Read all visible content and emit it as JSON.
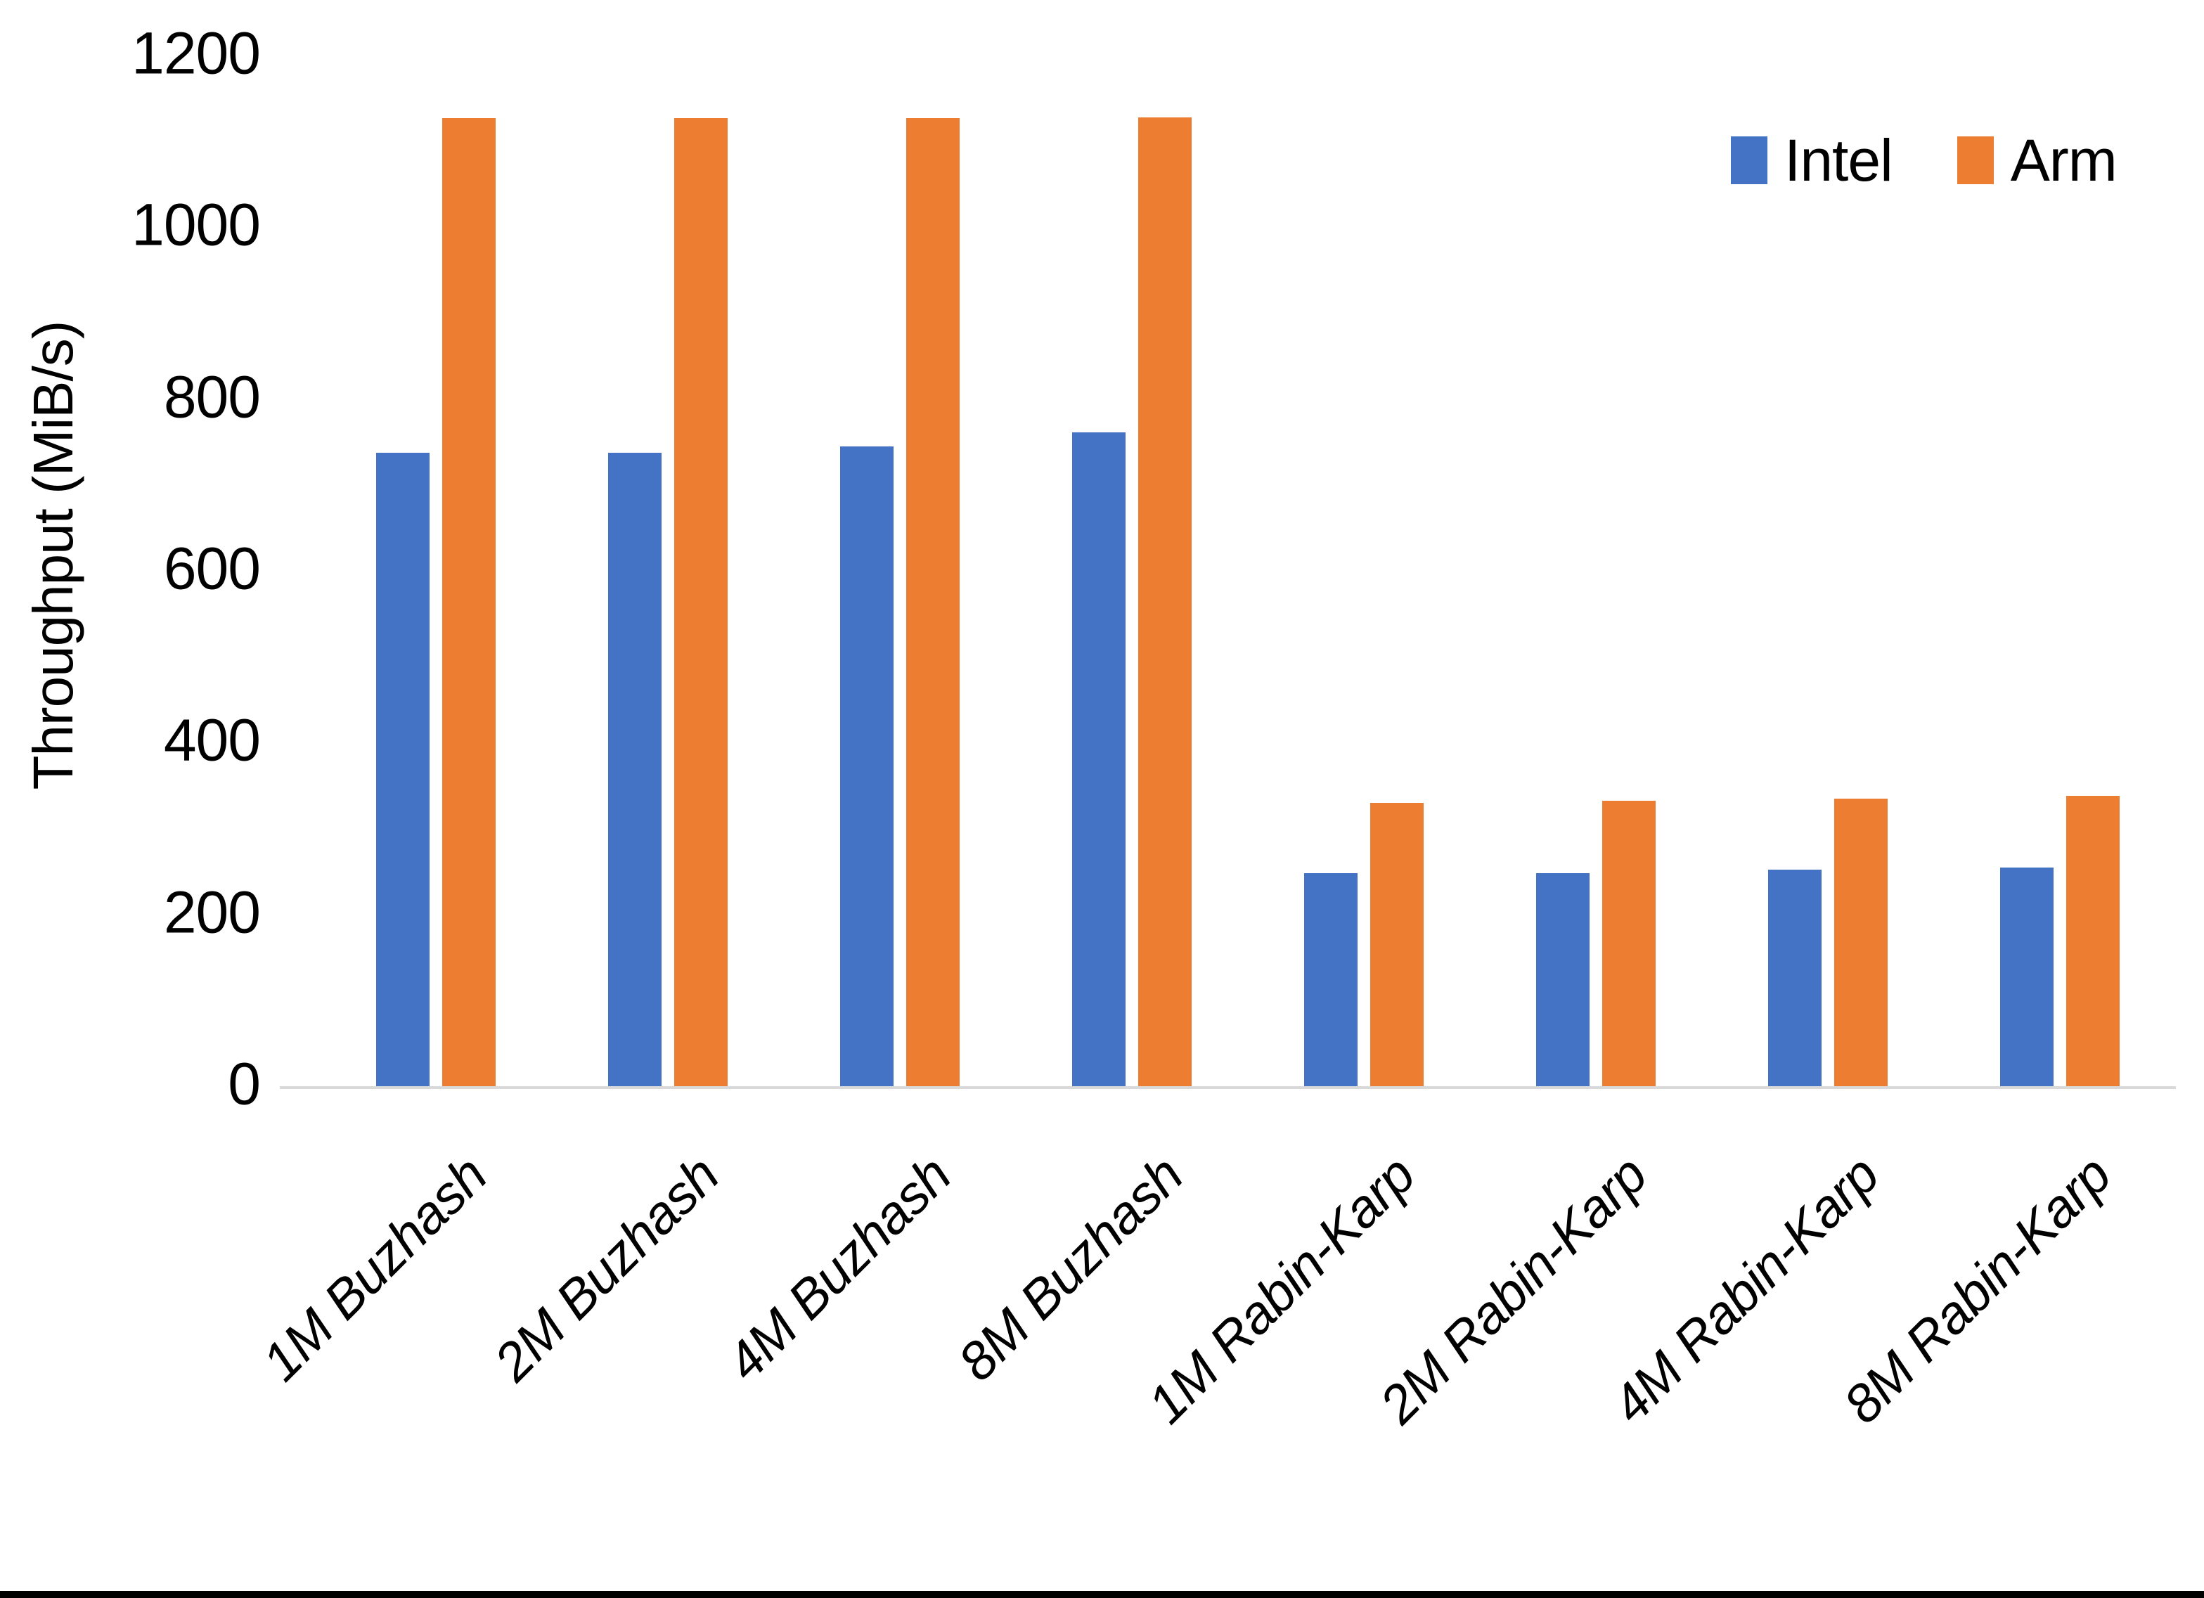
{
  "chart_data": {
    "type": "bar",
    "title": "",
    "xlabel": "",
    "ylabel": "Throughput (MiB/s)",
    "ylim": [
      0,
      1200
    ],
    "yticks": [
      0,
      200,
      400,
      600,
      800,
      1000,
      1200
    ],
    "grid": false,
    "legend_position": "top-right",
    "categories": [
      "1M Buzhash",
      "2M Buzhash",
      "4M Buzhash",
      "8M Buzhash",
      "1M Rabin-Karp",
      "2M Rabin-Karp",
      "4M Rabin-Karp",
      "8M Rabin-Karp"
    ],
    "series": [
      {
        "name": "Intel",
        "color": "#4472C4",
        "values": [
          738,
          738,
          746,
          762,
          249,
          249,
          253,
          255
        ]
      },
      {
        "name": "Arm",
        "color": "#ED7D31",
        "values": [
          1128,
          1128,
          1128,
          1129,
          331,
          333,
          336,
          339
        ]
      }
    ],
    "axis_line_color": "#D9D9D9",
    "text_color": "#000000"
  },
  "page": {
    "bottom_strip_color": "#000000"
  }
}
